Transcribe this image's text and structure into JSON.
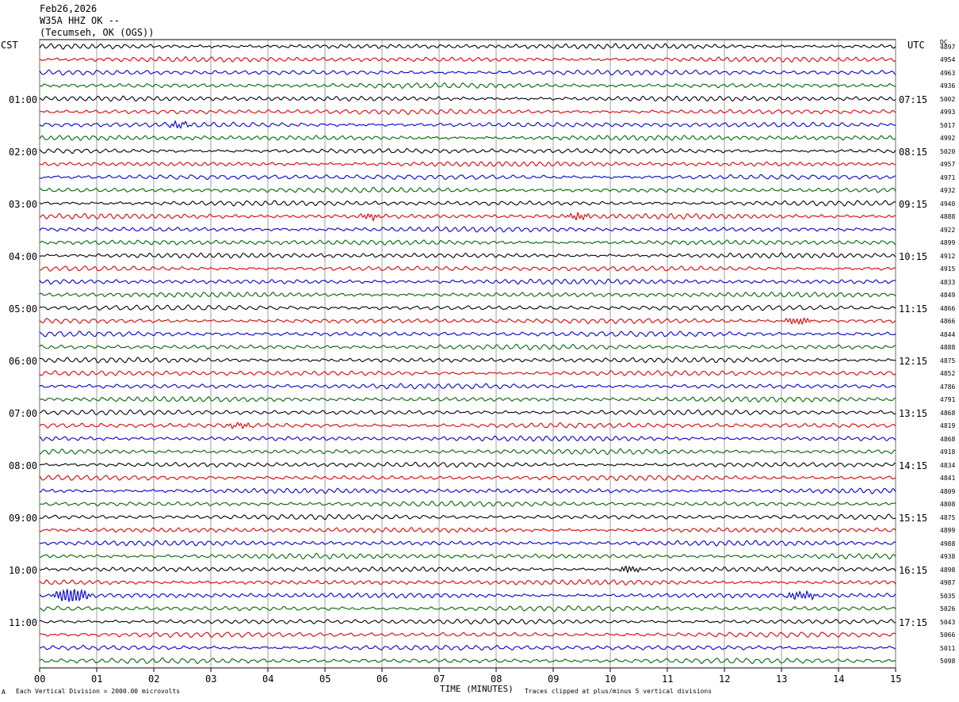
{
  "header": {
    "date": "Feb26,2026",
    "station": "W35A HHZ OK --",
    "location": "(Tecumseh, OK (OGS))"
  },
  "left_timezone": "CST",
  "right_timezone": "UTC",
  "dc_header": "DC",
  "footer": {
    "scale_mark": "A",
    "scale_note": "Each Vertical Division = 2000.00 microvolts",
    "clip_note": "Traces clipped at plus/minus 5 vertical divisions"
  },
  "colors": {
    "trace_cycle": [
      "#000000",
      "#dd0000",
      "#0000cc",
      "#006600"
    ],
    "grid": "#888888"
  },
  "chart_data": {
    "type": "line",
    "xlabel": "TIME (MINUTES)",
    "xlim": [
      0,
      15
    ],
    "x_ticks": [
      "00",
      "01",
      "02",
      "03",
      "04",
      "05",
      "06",
      "07",
      "08",
      "09",
      "10",
      "11",
      "12",
      "13",
      "14",
      "15"
    ],
    "left_hour_labels": [
      {
        "row": 4,
        "label": "01:00"
      },
      {
        "row": 8,
        "label": "02:00"
      },
      {
        "row": 12,
        "label": "03:00"
      },
      {
        "row": 16,
        "label": "04:00"
      },
      {
        "row": 20,
        "label": "05:00"
      },
      {
        "row": 24,
        "label": "06:00"
      },
      {
        "row": 28,
        "label": "07:00"
      },
      {
        "row": 32,
        "label": "08:00"
      },
      {
        "row": 36,
        "label": "09:00"
      },
      {
        "row": 40,
        "label": "10:00"
      },
      {
        "row": 44,
        "label": "11:00"
      }
    ],
    "right_hour_labels": [
      {
        "row": 4,
        "label": "07:15"
      },
      {
        "row": 8,
        "label": "08:15"
      },
      {
        "row": 12,
        "label": "09:15"
      },
      {
        "row": 16,
        "label": "10:15"
      },
      {
        "row": 20,
        "label": "11:15"
      },
      {
        "row": 24,
        "label": "12:15"
      },
      {
        "row": 28,
        "label": "13:15"
      },
      {
        "row": 32,
        "label": "14:15"
      },
      {
        "row": 36,
        "label": "15:15"
      },
      {
        "row": 40,
        "label": "16:15"
      },
      {
        "row": 44,
        "label": "17:15"
      }
    ],
    "dc_offsets": [
      "4897",
      "4954",
      "4963",
      "4936",
      "5002",
      "4993",
      "5017",
      "4992",
      "5020",
      "4957",
      "4971",
      "4932",
      "4940",
      "4888",
      "4922",
      "4899",
      "4912",
      "4915",
      "4833",
      "4849",
      "4866",
      "4866",
      "4844",
      "4888",
      "4875",
      "4852",
      "4786",
      "4791",
      "4868",
      "4819",
      "4868",
      "4918",
      "4834",
      "4841",
      "4809",
      "4808",
      "4875",
      "4899",
      "4988",
      "4938",
      "4898",
      "4987",
      "5035",
      "5026",
      "5043",
      "5066",
      "5011",
      "5098"
    ],
    "events": [
      {
        "row": 13,
        "x_start": 5.6,
        "x_end": 6.3,
        "amp": 1.6
      },
      {
        "row": 13,
        "x_start": 9.2,
        "x_end": 10.0,
        "amp": 1.8
      },
      {
        "row": 21,
        "x_start": 13.0,
        "x_end": 14.0,
        "amp": 1.8
      },
      {
        "row": 29,
        "x_start": 3.2,
        "x_end": 4.2,
        "amp": 1.2
      },
      {
        "row": 40,
        "x_start": 10.1,
        "x_end": 10.9,
        "amp": 1.8
      },
      {
        "row": 42,
        "x_start": 0.2,
        "x_end": 1.4,
        "amp": 4.5
      },
      {
        "row": 42,
        "x_start": 13.0,
        "x_end": 14.2,
        "amp": 2.0
      },
      {
        "row": 6,
        "x_start": 2.2,
        "x_end": 3.0,
        "amp": 1.6
      }
    ]
  }
}
